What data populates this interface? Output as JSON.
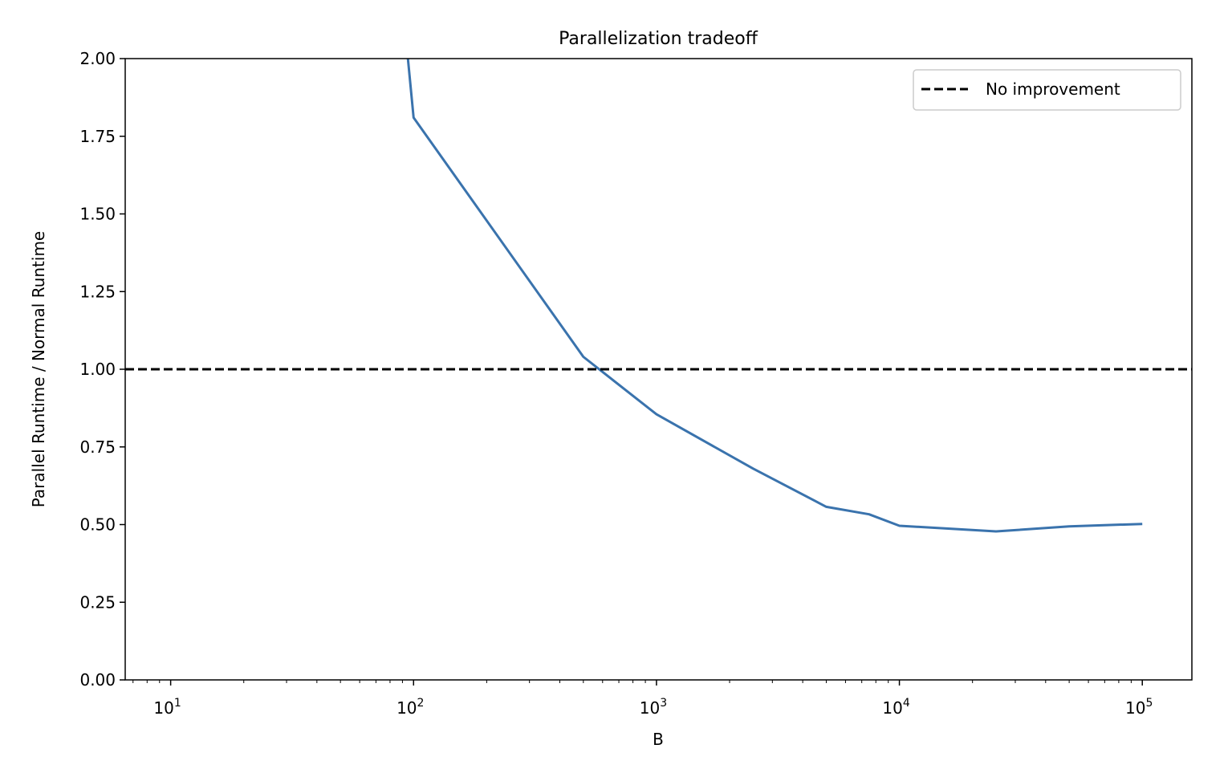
{
  "chart_data": {
    "type": "line",
    "title": "Parallelization tradeoff",
    "xlabel": "B",
    "ylabel": "Parallel Runtime / Normal Runtime",
    "xscale": "log",
    "xlim": [
      6.5,
      160000
    ],
    "ylim": [
      0,
      2
    ],
    "grid": false,
    "legend_placement": "top-right",
    "x_ticks": [
      {
        "value": 10,
        "base": "10",
        "exp": "1"
      },
      {
        "value": 100,
        "base": "10",
        "exp": "2"
      },
      {
        "value": 1000,
        "base": "10",
        "exp": "3"
      },
      {
        "value": 10000,
        "base": "10",
        "exp": "4"
      },
      {
        "value": 100000,
        "base": "10",
        "exp": "5"
      }
    ],
    "y_ticks": [
      {
        "value": 0,
        "label": "0.00"
      },
      {
        "value": 0.25,
        "label": "0.25"
      },
      {
        "value": 0.5,
        "label": "0.50"
      },
      {
        "value": 0.75,
        "label": "0.75"
      },
      {
        "value": 1.0,
        "label": "1.00"
      },
      {
        "value": 1.25,
        "label": "1.25"
      },
      {
        "value": 1.5,
        "label": "1.50"
      },
      {
        "value": 1.75,
        "label": "1.75"
      },
      {
        "value": 2.0,
        "label": "2.00"
      }
    ],
    "series": [
      {
        "color": "#3a73ad",
        "style": "solid",
        "x": [
          80,
          100,
          500,
          1000,
          2500,
          5000,
          7500,
          10000,
          25000,
          50000,
          100000
        ],
        "y": [
          2.6,
          1.81,
          1.04,
          0.855,
          0.68,
          0.557,
          0.533,
          0.496,
          0.478,
          0.494,
          0.502
        ]
      },
      {
        "name": "No improvement",
        "color": "#000000",
        "style": "dashed",
        "y_constant": 1.0
      }
    ]
  }
}
